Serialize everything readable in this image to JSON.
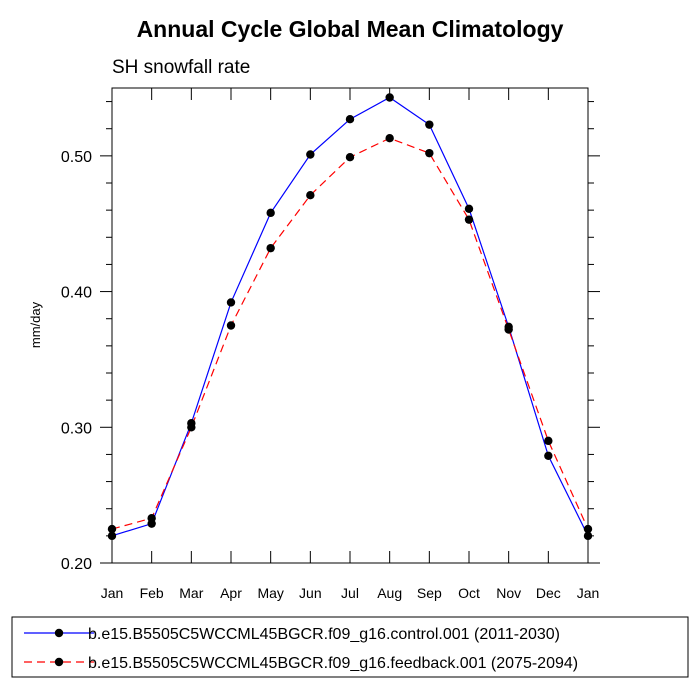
{
  "chart_data": {
    "type": "line",
    "title": "Annual Cycle Global Mean Climatology",
    "subtitle": "SH snowfall rate",
    "xlabel": "",
    "ylabel": "mm/day",
    "categories": [
      "Jan",
      "Feb",
      "Mar",
      "Apr",
      "May",
      "Jun",
      "Jul",
      "Aug",
      "Sep",
      "Oct",
      "Nov",
      "Dec",
      "Jan"
    ],
    "ylim": [
      0.2,
      0.55
    ],
    "yticks": [
      0.2,
      0.3,
      0.4,
      0.5
    ],
    "ytick_labels": [
      "0.20",
      "0.30",
      "0.40",
      "0.50"
    ],
    "series": [
      {
        "name": "b.e15.B5505C5WCCML45BGCR.f09_g16.control.001 (2011-2030)",
        "color": "#0000ff",
        "dash": "solid",
        "values": [
          0.22,
          0.229,
          0.303,
          0.392,
          0.458,
          0.501,
          0.527,
          0.543,
          0.523,
          0.461,
          0.374,
          0.279,
          0.22
        ]
      },
      {
        "name": "b.e15.B5505C5WCCML45BGCR.f09_g16.feedback.001 (2075-2094)",
        "color": "#ff0000",
        "dash": "dashed",
        "values": [
          0.225,
          0.233,
          0.3,
          0.375,
          0.432,
          0.471,
          0.499,
          0.513,
          0.502,
          0.453,
          0.372,
          0.29,
          0.225
        ]
      }
    ]
  }
}
